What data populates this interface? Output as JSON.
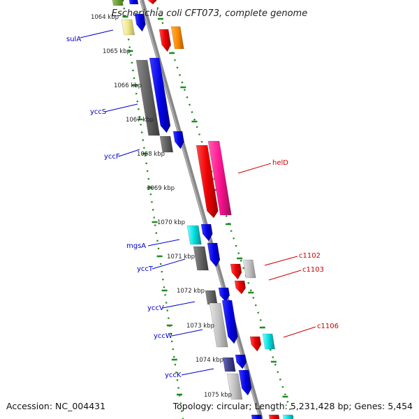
{
  "title": "Escherichia coli CFT073, complete genome",
  "footer": {
    "accession": "Accession: NC_004431",
    "summary": "Topology: circular; Length: 5,231,428 bp; Genes: 5,454"
  },
  "colors": {
    "backbone": "#888888",
    "ruler": "#228b22",
    "left_label": "#0000cc",
    "right_label": "#cc0000",
    "blue": "#0000ee",
    "dark_gray": "#666666",
    "light_gray": "#bbbbbb",
    "red": "#ee0000",
    "orange": "#ff8c00",
    "magenta": "#ff1493",
    "cyan": "#00d4d4",
    "navy": "#3c3c90",
    "pale_yellow": "#f0e68c"
  },
  "ticks": [
    {
      "label": "1064 kbp"
    },
    {
      "label": "1065 kbp"
    },
    {
      "label": "1066 kbp"
    },
    {
      "label": "1067 kbp"
    },
    {
      "label": "1068 kbp"
    },
    {
      "label": "1069 kbp"
    },
    {
      "label": "1070 kbp"
    },
    {
      "label": "1071 kbp"
    },
    {
      "label": "1072 kbp"
    },
    {
      "label": "1073 kbp"
    },
    {
      "label": "1074 kbp"
    },
    {
      "label": "1075 kbp"
    }
  ],
  "left_genes": [
    {
      "name": "sulA"
    },
    {
      "name": "yccS"
    },
    {
      "name": "yccF"
    },
    {
      "name": "mgsA"
    },
    {
      "name": "yccT"
    },
    {
      "name": "yccV"
    },
    {
      "name": "yccW"
    },
    {
      "name": "yccK"
    }
  ],
  "right_genes": [
    {
      "name": "helD"
    },
    {
      "name": "c1102"
    },
    {
      "name": "c1103"
    },
    {
      "name": "c1106"
    }
  ]
}
